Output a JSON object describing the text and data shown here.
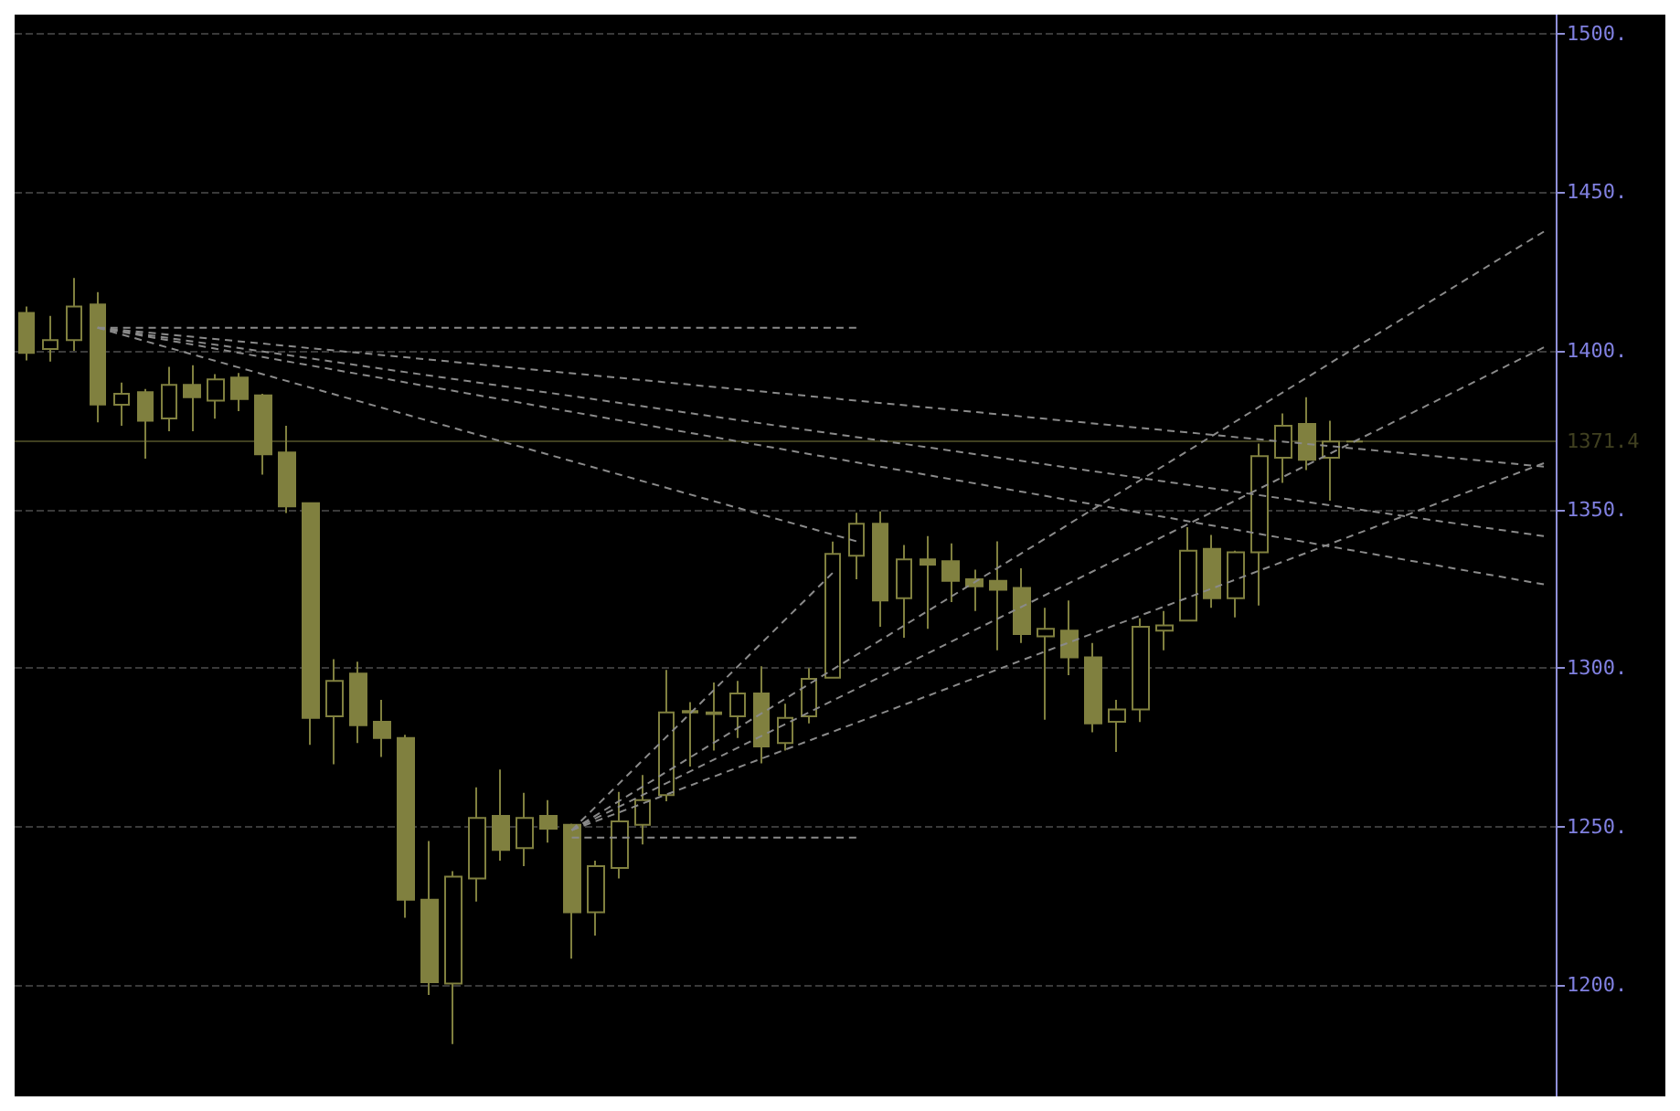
{
  "chart_data": {
    "type": "candlestick",
    "color": "#80803f",
    "categories": [
      null,
      null,
      null,
      null,
      null,
      null,
      null,
      null,
      null,
      null,
      null,
      null,
      null,
      null,
      null,
      null,
      null,
      null,
      null,
      null,
      null,
      null,
      null,
      null,
      null,
      null,
      null,
      null,
      null,
      null,
      null,
      null,
      null,
      null,
      null,
      null,
      null,
      null,
      null,
      null,
      null,
      null,
      null,
      null,
      null,
      null,
      null,
      null,
      null,
      null,
      null,
      null,
      null,
      null,
      null,
      null,
      null,
      null,
      null,
      null,
      null,
      null,
      null,
      null,
      null
    ],
    "ohlc": [
      [
        1412,
        1414,
        1397,
        1399.4
      ],
      [
        1400.6,
        1411,
        1396.6,
        1403.4
      ],
      [
        1403.4,
        1423,
        1400,
        1414
      ],
      [
        1414.6,
        1418.5,
        1377.5,
        1383.1
      ],
      [
        1383,
        1390,
        1376.4,
        1386.5
      ],
      [
        1387,
        1388,
        1366,
        1378
      ],
      [
        1378.7,
        1395,
        1374.7,
        1389.3
      ],
      [
        1389.3,
        1395.5,
        1374.7,
        1385.4
      ],
      [
        1384.3,
        1392.7,
        1378.6,
        1391
      ],
      [
        1391.6,
        1393,
        1381,
        1384.8
      ],
      [
        1386,
        1386.5,
        1361,
        1367.4
      ],
      [
        1368,
        1376.4,
        1348.9,
        1351
      ],
      [
        1352,
        1352,
        1275.8,
        1284.3
      ],
      [
        1284.8,
        1302.8,
        1269.7,
        1296
      ],
      [
        1298.3,
        1302,
        1276.4,
        1282
      ],
      [
        1283.1,
        1290,
        1272,
        1278
      ],
      [
        1278,
        1279,
        1221.3,
        1227
      ],
      [
        1227,
        1245.5,
        1197,
        1201
      ],
      [
        1200.6,
        1236,
        1181.5,
        1234.3
      ],
      [
        1233.7,
        1262.4,
        1226.4,
        1252.8
      ],
      [
        1253.4,
        1268,
        1239.3,
        1242.7
      ],
      [
        1243.3,
        1260.7,
        1237.6,
        1252.8
      ],
      [
        1253.4,
        1258.4,
        1245,
        1249.4
      ],
      [
        1250.6,
        1251,
        1208.4,
        1223
      ],
      [
        1223,
        1239.3,
        1215.7,
        1237.6
      ],
      [
        1237,
        1261,
        1233.7,
        1251.7
      ],
      [
        1250.6,
        1266.3,
        1244.4,
        1258.4
      ],
      [
        1260,
        1299.4,
        1258,
        1286
      ],
      [
        1286,
        1289.3,
        1269,
        1286.5
      ],
      [
        1285.5,
        1295.5,
        1274,
        1286
      ],
      [
        1284.8,
        1296,
        1278,
        1292
      ],
      [
        1292,
        1300.6,
        1270,
        1275.3
      ],
      [
        1276.4,
        1288.8,
        1274,
        1284.3
      ],
      [
        1284.8,
        1300,
        1282.6,
        1296.6
      ],
      [
        1297,
        1339.9,
        1297,
        1336
      ],
      [
        1335.4,
        1349,
        1328,
        1345.5
      ],
      [
        1345.5,
        1349.4,
        1313,
        1321.3
      ],
      [
        1322,
        1338.8,
        1309.6,
        1334.3
      ],
      [
        1334.3,
        1341.6,
        1312.4,
        1332.6
      ],
      [
        1333.7,
        1339.3,
        1320.8,
        1327.5
      ],
      [
        1328,
        1331,
        1318,
        1325.8
      ],
      [
        1327.5,
        1340,
        1305.6,
        1324.7
      ],
      [
        1325.3,
        1331.5,
        1307.9,
        1310.7
      ],
      [
        1310,
        1319,
        1283.7,
        1312.4
      ],
      [
        1311.8,
        1321.3,
        1297.8,
        1303.4
      ],
      [
        1303.4,
        1307.9,
        1279.8,
        1282.6
      ],
      [
        1283.1,
        1290,
        1273.6,
        1287
      ],
      [
        1287,
        1315.7,
        1283,
        1313
      ],
      [
        1311.8,
        1318,
        1305.6,
        1313.5
      ],
      [
        1315,
        1344.4,
        1315,
        1337
      ],
      [
        1337.6,
        1342,
        1319,
        1322
      ],
      [
        1322,
        1337,
        1316,
        1336.5
      ],
      [
        1336.5,
        1370.8,
        1319.7,
        1366.8
      ],
      [
        1366.3,
        1380.3,
        1358.4,
        1376.4
      ],
      [
        1377,
        1385.4,
        1362.4,
        1365.7
      ],
      [
        1366.3,
        1378,
        1352.8,
        1371.4
      ],
      [
        1371.4,
        1371.4,
        1371.4,
        1371.4
      ],
      null,
      null,
      null,
      null,
      null,
      null,
      null,
      null
    ],
    "series": [
      {
        "type": "line",
        "color": "#8a8a8a",
        "values": [
          null,
          null,
          null,
          1407.3,
          null,
          null,
          null,
          null,
          null,
          null,
          null,
          null,
          null,
          null,
          null,
          null,
          null,
          null,
          null,
          null,
          null,
          null,
          null,
          null,
          null,
          null,
          null,
          null,
          null,
          null,
          null,
          null,
          null,
          null,
          null,
          null,
          null,
          null,
          null,
          null,
          null,
          null,
          null,
          null,
          null,
          null,
          null,
          null,
          null,
          null,
          null,
          null,
          null,
          null,
          null,
          null,
          null,
          null,
          null,
          null,
          null,
          null,
          null,
          null,
          1363.5
        ]
      },
      {
        "type": "line",
        "color": "#8a8a8a",
        "values": [
          null,
          null,
          null,
          1407.3,
          null,
          null,
          null,
          null,
          null,
          null,
          null,
          null,
          null,
          null,
          null,
          null,
          null,
          null,
          null,
          null,
          null,
          null,
          null,
          null,
          null,
          null,
          null,
          null,
          null,
          null,
          null,
          null,
          null,
          null,
          null,
          null,
          null,
          null,
          null,
          null,
          null,
          null,
          null,
          null,
          null,
          null,
          null,
          null,
          null,
          null,
          null,
          null,
          null,
          null,
          null,
          null,
          null,
          null,
          null,
          null,
          null,
          null,
          null,
          null,
          1341.6
        ]
      },
      {
        "type": "line",
        "color": "#8a8a8a",
        "values": [
          null,
          null,
          null,
          1407.3,
          null,
          null,
          null,
          null,
          null,
          null,
          null,
          null,
          null,
          null,
          null,
          null,
          null,
          null,
          null,
          null,
          null,
          null,
          null,
          null,
          null,
          null,
          null,
          null,
          null,
          null,
          null,
          null,
          null,
          null,
          null,
          null,
          null,
          null,
          null,
          null,
          null,
          null,
          null,
          null,
          null,
          null,
          null,
          null,
          null,
          null,
          null,
          null,
          null,
          null,
          null,
          null,
          null,
          null,
          null,
          null,
          null,
          null,
          null,
          null,
          1326.4
        ]
      },
      {
        "type": "line",
        "color": "#8a8a8a",
        "values": [
          null,
          null,
          null,
          1407.3,
          null,
          null,
          null,
          null,
          null,
          null,
          null,
          null,
          null,
          null,
          null,
          null,
          null,
          null,
          null,
          null,
          null,
          null,
          null,
          null,
          null,
          null,
          null,
          null,
          null,
          null,
          null,
          null,
          null,
          null,
          null,
          1340,
          null,
          null,
          null,
          null,
          null,
          null,
          null,
          null,
          null,
          null,
          null,
          null,
          null,
          null,
          null,
          null,
          null,
          null,
          null,
          null,
          null,
          null,
          null,
          null,
          null,
          null,
          null,
          null,
          null
        ]
      },
      {
        "type": "line",
        "color": "#8a8a8a",
        "values": [
          null,
          null,
          null,
          1407.3,
          null,
          null,
          null,
          null,
          null,
          null,
          null,
          null,
          null,
          null,
          null,
          null,
          null,
          null,
          null,
          null,
          null,
          null,
          null,
          null,
          null,
          null,
          null,
          null,
          null,
          null,
          null,
          null,
          null,
          null,
          null,
          1407.3,
          null,
          null,
          null,
          null,
          null,
          null,
          null,
          null,
          null,
          null,
          null,
          null,
          null,
          null,
          null,
          null,
          null,
          null,
          null,
          null,
          null,
          null,
          null,
          null,
          null,
          null,
          null,
          null,
          null
        ]
      },
      {
        "type": "line",
        "color": "#8a8a8a",
        "values": [
          null,
          null,
          null,
          null,
          null,
          null,
          null,
          null,
          null,
          null,
          null,
          null,
          null,
          null,
          null,
          null,
          null,
          null,
          null,
          null,
          null,
          null,
          null,
          1246.6,
          null,
          null,
          null,
          null,
          null,
          null,
          null,
          null,
          null,
          null,
          null,
          1246.6,
          null,
          null,
          null,
          null,
          null,
          null,
          null,
          null,
          null,
          null,
          null,
          null,
          null,
          null,
          null,
          null,
          null,
          null,
          null,
          null,
          null,
          null,
          null,
          null,
          null,
          null,
          null,
          null,
          null
        ]
      },
      {
        "type": "line",
        "color": "#8a8a8a",
        "values": [
          null,
          null,
          null,
          null,
          null,
          null,
          null,
          null,
          null,
          null,
          null,
          null,
          null,
          null,
          null,
          null,
          null,
          null,
          null,
          null,
          null,
          null,
          null,
          1248.9,
          null,
          null,
          null,
          null,
          null,
          null,
          null,
          null,
          null,
          null,
          1330,
          null,
          null,
          null,
          null,
          null,
          null,
          null,
          null,
          null,
          null,
          null,
          null,
          null,
          null,
          null,
          null,
          null,
          null,
          null,
          null,
          null,
          null,
          null,
          null,
          null,
          null,
          null,
          null,
          null,
          null
        ]
      },
      {
        "type": "line",
        "color": "#8a8a8a",
        "values": [
          null,
          null,
          null,
          null,
          null,
          null,
          null,
          null,
          null,
          null,
          null,
          null,
          null,
          null,
          null,
          null,
          null,
          null,
          null,
          null,
          null,
          null,
          null,
          1248.9,
          null,
          null,
          null,
          null,
          null,
          null,
          null,
          null,
          null,
          null,
          null,
          null,
          null,
          null,
          null,
          null,
          null,
          null,
          null,
          null,
          null,
          null,
          null,
          null,
          null,
          null,
          null,
          null,
          null,
          null,
          null,
          null,
          null,
          null,
          null,
          null,
          null,
          null,
          null,
          null,
          1437.6
        ]
      },
      {
        "type": "line",
        "color": "#8a8a8a",
        "values": [
          null,
          null,
          null,
          null,
          null,
          null,
          null,
          null,
          null,
          null,
          null,
          null,
          null,
          null,
          null,
          null,
          null,
          null,
          null,
          null,
          null,
          null,
          null,
          1248.9,
          null,
          null,
          null,
          null,
          null,
          null,
          null,
          null,
          null,
          null,
          null,
          null,
          null,
          null,
          null,
          null,
          null,
          null,
          null,
          null,
          null,
          null,
          null,
          null,
          null,
          null,
          null,
          null,
          null,
          null,
          null,
          null,
          null,
          null,
          null,
          null,
          null,
          null,
          null,
          null,
          1401.1
        ]
      },
      {
        "type": "line",
        "color": "#8a8a8a",
        "values": [
          null,
          null,
          null,
          null,
          null,
          null,
          null,
          null,
          null,
          null,
          null,
          null,
          null,
          null,
          null,
          null,
          null,
          null,
          null,
          null,
          null,
          null,
          null,
          1248.9,
          null,
          null,
          null,
          null,
          null,
          null,
          null,
          null,
          null,
          null,
          null,
          null,
          null,
          null,
          null,
          null,
          null,
          null,
          null,
          null,
          null,
          null,
          null,
          null,
          null,
          null,
          null,
          null,
          null,
          null,
          null,
          null,
          null,
          null,
          null,
          null,
          null,
          null,
          null,
          null,
          1364.6
        ]
      }
    ],
    "line_style": "dashed",
    "marker": "none",
    "ylim": [
      1165,
      1506
    ],
    "yticks": [
      {
        "value": 1200,
        "label": "1200."
      },
      {
        "value": 1250,
        "label": "1250."
      },
      {
        "value": 1300,
        "label": "1300."
      },
      {
        "value": 1350,
        "label": "1350."
      },
      {
        "value": 1400,
        "label": "1400."
      },
      {
        "value": 1450,
        "label": "1450."
      },
      {
        "value": 1500,
        "label": "1500."
      }
    ],
    "ref_lines": [
      {
        "axis": "y",
        "value": 1371.4,
        "label": "1371.4",
        "color": "#80803f"
      }
    ],
    "grid": "y",
    "tick_labels": "y"
  }
}
